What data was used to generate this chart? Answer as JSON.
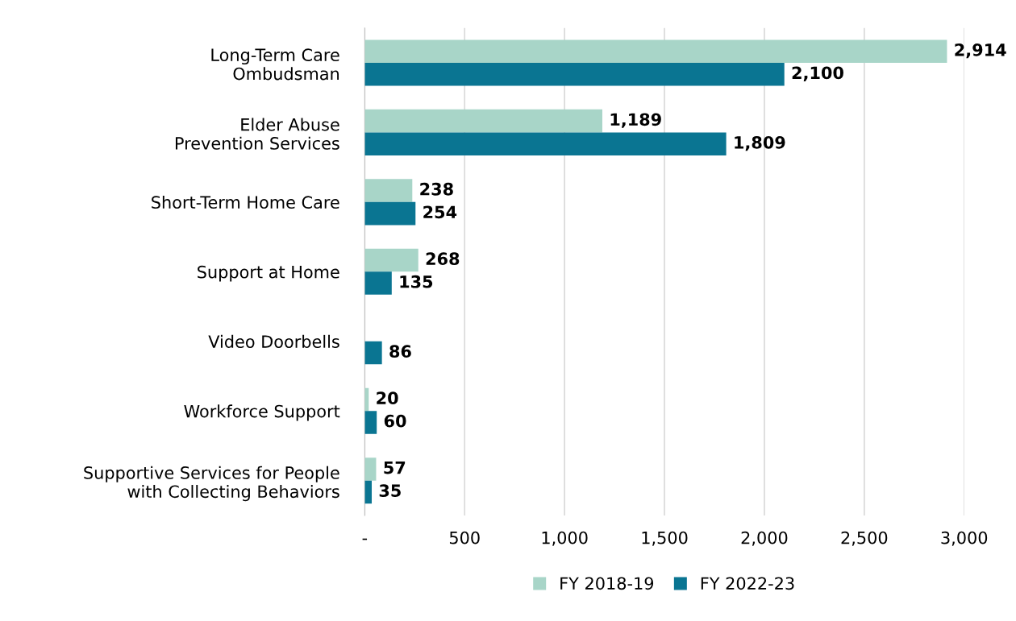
{
  "chart_data": {
    "type": "bar",
    "orientation": "horizontal",
    "categories": [
      "Long-Term Care\nOmbudsman",
      "Elder Abuse\nPrevention Services",
      "Short-Term Home Care",
      "Support at Home",
      "Video Doorbells",
      "Workforce Support",
      "Supportive Services for People\nwith Collecting Behaviors"
    ],
    "series": [
      {
        "name": "FY 2018-19",
        "color": "#a8d5c8",
        "values": [
          2914,
          1189,
          238,
          268,
          null,
          20,
          57
        ],
        "value_labels": [
          "2,914",
          "1,189",
          "238",
          "268",
          null,
          "20",
          "57"
        ]
      },
      {
        "name": "FY 2022-23",
        "color": "#0a7592",
        "values": [
          2100,
          1809,
          254,
          135,
          86,
          60,
          35
        ],
        "value_labels": [
          "2,100",
          "1,809",
          "254",
          "135",
          "86",
          "60",
          "35"
        ]
      }
    ],
    "xlim": [
      0,
      3000
    ],
    "xticks": [
      {
        "value": 0,
        "label": "-"
      },
      500,
      {
        "value": 1000,
        "label": "1,000"
      },
      {
        "value": 1500,
        "label": "1,500"
      },
      {
        "value": 2000,
        "label": "2,000"
      },
      {
        "value": 2500,
        "label": "2,500"
      },
      {
        "value": 3000,
        "label": "3,000"
      }
    ],
    "grid": "x",
    "legend": "bottom"
  }
}
